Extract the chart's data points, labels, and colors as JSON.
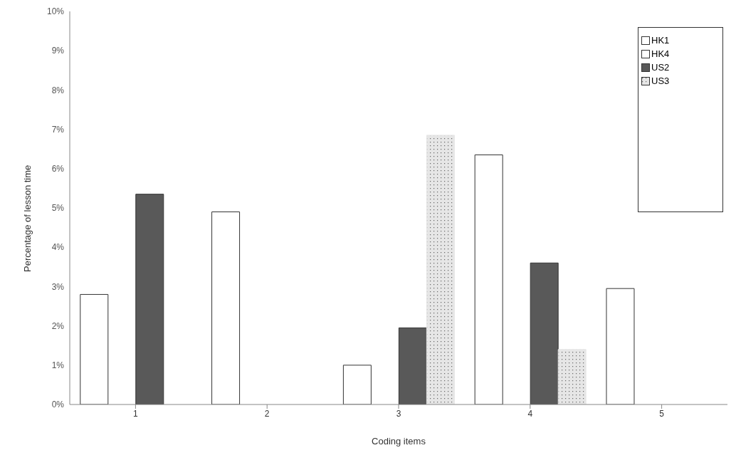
{
  "chart_data": {
    "type": "bar",
    "xlabel": "Coding items",
    "ylabel": "Percentage of lesson time",
    "categories": [
      "1",
      "2",
      "3",
      "4",
      "5"
    ],
    "series": [
      {
        "name": "HK1",
        "color": "#ffffff",
        "values": [
          2.8,
          4.9,
          1.0,
          6.35,
          2.95
        ]
      },
      {
        "name": "HK4",
        "color": "#ffffff",
        "values": [
          0,
          0,
          0,
          0,
          0
        ]
      },
      {
        "name": "US2",
        "color": "#595959",
        "values": [
          5.35,
          0,
          1.95,
          3.6,
          0
        ]
      },
      {
        "name": "US3",
        "color": "#e6e6e6",
        "values": [
          0,
          0,
          6.85,
          1.4,
          0
        ]
      }
    ],
    "ylim": [
      0,
      10
    ],
    "yticks": [
      {
        "value": 0,
        "label": "0%"
      },
      {
        "value": 1,
        "label": "1%"
      },
      {
        "value": 2,
        "label": "2%"
      },
      {
        "value": 3,
        "label": "3%"
      },
      {
        "value": 4,
        "label": "4%"
      },
      {
        "value": 5,
        "label": "5%"
      },
      {
        "value": 6,
        "label": "6%"
      },
      {
        "value": 7,
        "label": "7%"
      },
      {
        "value": 8,
        "label": "8%"
      },
      {
        "value": 9,
        "label": "9%"
      },
      {
        "value": 10,
        "label": "10%"
      }
    ],
    "grid": false,
    "legend": "top right"
  }
}
